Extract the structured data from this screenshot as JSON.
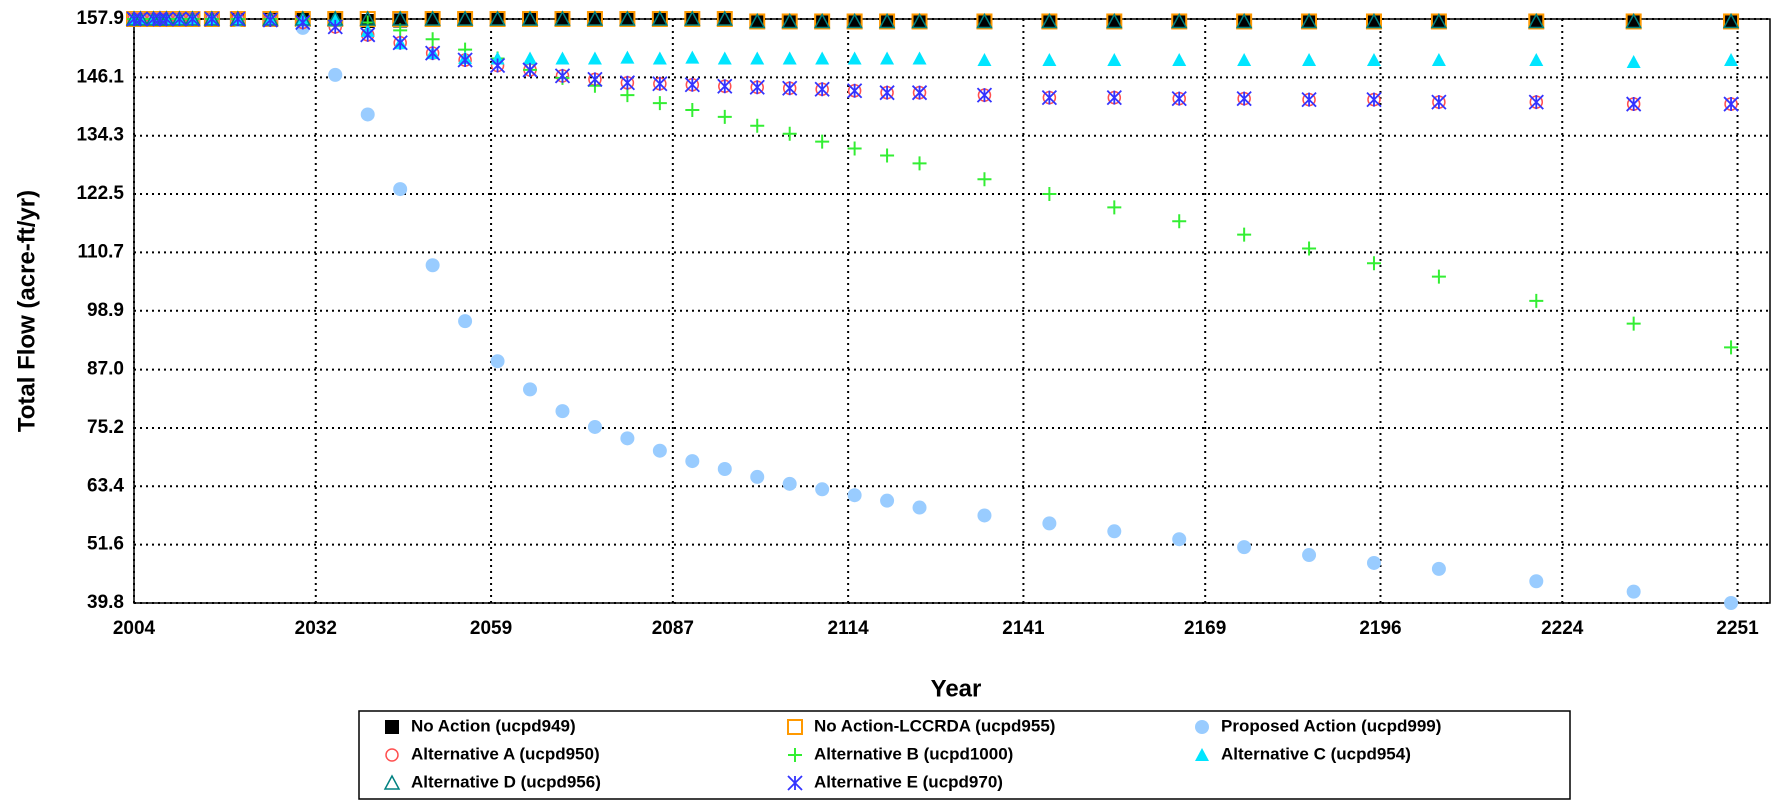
{
  "chart_data": {
    "type": "scatter",
    "x_label": "Year",
    "y_label": "Total Flow (acre-ft/yr)",
    "xlim": [
      2004,
      2256
    ],
    "xticks": [
      2004,
      2032,
      2059,
      2087,
      2114,
      2141,
      2169,
      2196,
      2224,
      2251
    ],
    "ylim": [
      39.8,
      157.9
    ],
    "yticks": [
      39.8,
      51.6,
      63.4,
      75.2,
      {
        "value": 87,
        "label": "87.0"
      },
      98.9,
      110.7,
      122.5,
      134.3,
      146.1,
      157.9
    ],
    "grid": true,
    "x": [
      2004,
      2005,
      2007,
      2008,
      2009,
      2011,
      2013,
      2016,
      2020,
      2025,
      2030,
      2035,
      2040,
      2045,
      2050,
      2055,
      2060,
      2065,
      2070,
      2075,
      2080,
      2085,
      2090,
      2095,
      2100,
      2105,
      2110,
      2115,
      2120,
      2125,
      2135,
      2145,
      2155,
      2165,
      2175,
      2185,
      2195,
      2205,
      2220,
      2235,
      2250
    ],
    "series": [
      {
        "name": "No Action (ucpd949)",
        "color": "#000000",
        "marker": "square",
        "values": [
          157.9,
          157.9,
          157.9,
          157.9,
          157.9,
          157.9,
          157.9,
          157.9,
          157.9,
          157.9,
          157.9,
          157.9,
          157.5,
          157.6,
          157.9,
          157.9,
          157.9,
          157.9,
          157.9,
          157.9,
          157.9,
          157.9,
          157.9,
          157.9,
          157.4,
          157.4,
          157.4,
          157.4,
          157.4,
          157.4,
          157.4,
          157.4,
          157.4,
          157.4,
          157.4,
          157.4,
          157.4,
          157.4,
          157.4,
          157.4,
          157.4
        ]
      },
      {
        "name": "No Action-LCCRDA (ucpd955)",
        "color": "#ff9900",
        "marker": "open-square",
        "values": [
          157.9,
          157.9,
          157.9,
          157.9,
          157.9,
          157.9,
          157.9,
          157.9,
          157.9,
          157.9,
          157.9,
          157.9,
          157.9,
          157.9,
          157.9,
          157.9,
          157.9,
          157.9,
          157.9,
          157.9,
          157.9,
          157.9,
          157.9,
          157.9,
          157.4,
          157.4,
          157.4,
          157.4,
          157.4,
          157.4,
          157.4,
          157.4,
          157.4,
          157.4,
          157.4,
          157.4,
          157.4,
          157.4,
          157.4,
          157.4,
          157.4
        ]
      },
      {
        "name": "Proposed Action (ucpd999)",
        "color": "#99ccff",
        "marker": "circle",
        "values": [
          157.9,
          157.9,
          157.9,
          157.9,
          157.9,
          157.9,
          157.9,
          157.9,
          157.7,
          157.7,
          156.1,
          146.6,
          138.6,
          123.5,
          108.1,
          96.8,
          88.7,
          83.0,
          78.6,
          75.4,
          73.1,
          70.6,
          68.5,
          66.9,
          65.3,
          63.9,
          62.8,
          61.6,
          60.5,
          59.1,
          57.5,
          55.9,
          54.3,
          52.7,
          51.1,
          49.5,
          47.9,
          46.7,
          44.2,
          42.1,
          39.8
        ]
      },
      {
        "name": "Alternative A (ucpd950)",
        "color": "#ff5050",
        "marker": "open-circle",
        "values": [
          157.9,
          157.9,
          157.9,
          157.9,
          157.9,
          157.9,
          157.9,
          157.9,
          157.9,
          157.7,
          157.2,
          156.3,
          154.7,
          153.1,
          151.0,
          149.6,
          148.5,
          147.6,
          146.4,
          145.7,
          145.0,
          144.8,
          144.6,
          144.3,
          144.1,
          143.9,
          143.7,
          143.4,
          143.0,
          143.0,
          142.5,
          142.0,
          142.0,
          141.8,
          141.8,
          141.6,
          141.6,
          141.1,
          141.1,
          140.7,
          140.7
        ]
      },
      {
        "name": "Alternative B (ucpd1000)",
        "color": "#33ee33",
        "marker": "plus",
        "values": [
          157.9,
          157.9,
          157.9,
          157.9,
          157.9,
          157.9,
          157.9,
          157.9,
          157.9,
          157.9,
          157.9,
          157.6,
          157.2,
          155.6,
          153.8,
          151.7,
          149.9,
          147.6,
          146.0,
          144.4,
          142.5,
          140.9,
          139.5,
          138.1,
          136.3,
          134.7,
          133.1,
          131.7,
          130.3,
          128.7,
          125.5,
          122.5,
          119.8,
          117.0,
          114.3,
          111.5,
          108.5,
          105.8,
          100.9,
          96.3,
          91.5
        ]
      },
      {
        "name": "Alternative C (ucpd954)",
        "color": "#00e5ff",
        "marker": "triangle",
        "values": [
          157.9,
          157.9,
          157.9,
          157.9,
          157.9,
          157.9,
          157.9,
          157.9,
          157.9,
          157.9,
          157.9,
          157.6,
          155.5,
          153.0,
          151.0,
          150.0,
          149.9,
          149.9,
          149.9,
          149.9,
          150.1,
          149.9,
          150.1,
          149.9,
          149.9,
          149.9,
          149.9,
          149.9,
          149.9,
          149.9,
          149.6,
          149.6,
          149.6,
          149.6,
          149.6,
          149.6,
          149.6,
          149.6,
          149.6,
          149.2,
          149.6
        ]
      },
      {
        "name": "Alternative D (ucpd956)",
        "color": "#008080",
        "marker": "open-triangle",
        "values": [
          157.9,
          157.9,
          157.9,
          157.9,
          157.9,
          157.9,
          157.9,
          157.9,
          157.9,
          157.9,
          157.9,
          157.9,
          157.9,
          157.9,
          157.9,
          157.9,
          157.9,
          157.9,
          157.9,
          157.9,
          157.9,
          157.9,
          157.9,
          157.9,
          157.4,
          157.4,
          157.4,
          157.4,
          157.4,
          157.4,
          157.4,
          157.4,
          157.4,
          157.4,
          157.4,
          157.4,
          157.4,
          157.4,
          157.4,
          157.4,
          157.4
        ]
      },
      {
        "name": "Alternative E (ucpd970)",
        "color": "#3333ff",
        "marker": "asterisk",
        "values": [
          157.9,
          157.9,
          157.9,
          157.9,
          157.9,
          157.9,
          157.9,
          157.9,
          157.9,
          157.7,
          157.2,
          156.3,
          154.7,
          153.1,
          151.0,
          149.6,
          148.5,
          147.6,
          146.4,
          145.7,
          145.0,
          144.8,
          144.6,
          144.3,
          144.1,
          143.9,
          143.7,
          143.4,
          143.0,
          143.0,
          142.5,
          142.0,
          142.0,
          141.8,
          141.8,
          141.6,
          141.6,
          141.1,
          141.1,
          140.7,
          140.7
        ]
      }
    ]
  }
}
